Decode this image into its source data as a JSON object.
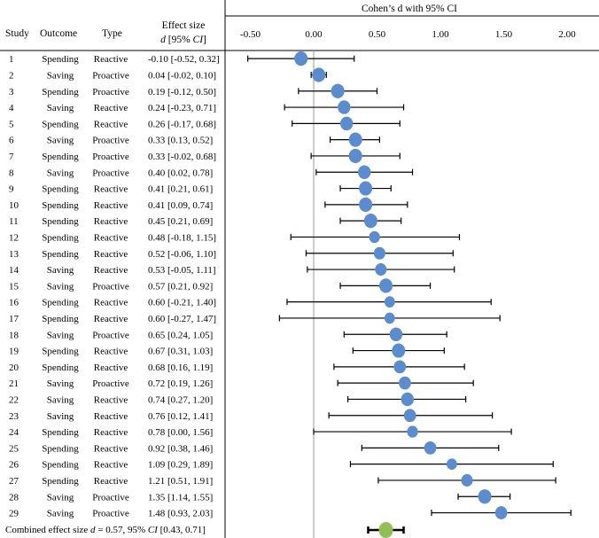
{
  "chart_data": {
    "type": "forest",
    "title": "Cohen’s d with 95% CI",
    "columns": {
      "study": "Study",
      "outcome": "Outcome",
      "type": "Type",
      "effect_line1": "Effect size",
      "effect_line2_d": "d",
      "effect_line2_ci_open": " [95% ",
      "effect_line2_ci": "CI",
      "effect_line2_ci_close": "]"
    },
    "x_ticks": [
      "-0.50",
      "0.00",
      "0.50",
      "1.00",
      "1.50",
      "2.00"
    ],
    "x_tick_values": [
      -0.5,
      0.0,
      0.5,
      1.0,
      1.5,
      2.0
    ],
    "xlim": [
      -0.7,
      2.15
    ],
    "studies": [
      {
        "study": "1",
        "outcome": "Spending",
        "type": "Reactive",
        "d": -0.1,
        "lo": -0.52,
        "hi": 0.32,
        "label": "-0.10 [-0.52, 0.32]",
        "weight": 1.0
      },
      {
        "study": "2",
        "outcome": "Saving",
        "type": "Proactive",
        "d": 0.04,
        "lo": -0.02,
        "hi": 0.1,
        "label": "0.04 [-0.02, 0.10]",
        "weight": 1.0
      },
      {
        "study": "3",
        "outcome": "Spending",
        "type": "Proactive",
        "d": 0.19,
        "lo": -0.12,
        "hi": 0.5,
        "label": "0.19 [-0.12, 0.50]",
        "weight": 1.0
      },
      {
        "study": "4",
        "outcome": "Saving",
        "type": "Reactive",
        "d": 0.24,
        "lo": -0.23,
        "hi": 0.71,
        "label": "0.24 [-0.23, 0.71]",
        "weight": 0.95
      },
      {
        "study": "5",
        "outcome": "Spending",
        "type": "Reactive",
        "d": 0.26,
        "lo": -0.17,
        "hi": 0.68,
        "label": "0.26 [-0.17, 0.68]",
        "weight": 0.95
      },
      {
        "study": "6",
        "outcome": "Saving",
        "type": "Proactive",
        "d": 0.33,
        "lo": 0.13,
        "hi": 0.52,
        "label": "0.33 [0.13, 0.52]",
        "weight": 1.0
      },
      {
        "study": "7",
        "outcome": "Spending",
        "type": "Proactive",
        "d": 0.33,
        "lo": -0.02,
        "hi": 0.68,
        "label": "0.33 [-0.02, 0.68]",
        "weight": 1.0
      },
      {
        "study": "8",
        "outcome": "Saving",
        "type": "Proactive",
        "d": 0.4,
        "lo": 0.02,
        "hi": 0.78,
        "label": "0.40 [0.02, 0.78]",
        "weight": 0.95
      },
      {
        "study": "9",
        "outcome": "Spending",
        "type": "Reactive",
        "d": 0.41,
        "lo": 0.21,
        "hi": 0.61,
        "label": "0.41 [0.21, 0.61]",
        "weight": 1.0
      },
      {
        "study": "10",
        "outcome": "Spending",
        "type": "Reactive",
        "d": 0.41,
        "lo": 0.09,
        "hi": 0.74,
        "label": "0.41 [0.09, 0.74]",
        "weight": 1.0
      },
      {
        "study": "11",
        "outcome": "Spending",
        "type": "Reactive",
        "d": 0.45,
        "lo": 0.21,
        "hi": 0.69,
        "label": "0.45 [0.21, 0.69]",
        "weight": 1.0
      },
      {
        "study": "12",
        "outcome": "Spending",
        "type": "Reactive",
        "d": 0.48,
        "lo": -0.18,
        "hi": 1.15,
        "label": "0.48 [-0.18, 1.15]",
        "weight": 0.8
      },
      {
        "study": "13",
        "outcome": "Spending",
        "type": "Reactive",
        "d": 0.52,
        "lo": -0.06,
        "hi": 1.1,
        "label": "0.52 [-0.06, 1.10]",
        "weight": 0.85
      },
      {
        "study": "14",
        "outcome": "Saving",
        "type": "Reactive",
        "d": 0.53,
        "lo": -0.05,
        "hi": 1.11,
        "label": "0.53 [-0.05, 1.11]",
        "weight": 0.85
      },
      {
        "study": "15",
        "outcome": "Saving",
        "type": "Proactive",
        "d": 0.57,
        "lo": 0.21,
        "hi": 0.92,
        "label": "0.57 [0.21, 0.92]",
        "weight": 1.0
      },
      {
        "study": "16",
        "outcome": "Spending",
        "type": "Reactive",
        "d": 0.6,
        "lo": -0.21,
        "hi": 1.4,
        "label": "0.60 [-0.21, 1.40]",
        "weight": 0.75
      },
      {
        "study": "17",
        "outcome": "Spending",
        "type": "Reactive",
        "d": 0.6,
        "lo": -0.27,
        "hi": 1.47,
        "label": "0.60 [-0.27, 1.47]",
        "weight": 0.75
      },
      {
        "study": "18",
        "outcome": "Saving",
        "type": "Proactive",
        "d": 0.65,
        "lo": 0.24,
        "hi": 1.05,
        "label": "0.65 [0.24, 1.05]",
        "weight": 0.95
      },
      {
        "study": "19",
        "outcome": "Spending",
        "type": "Reactive",
        "d": 0.67,
        "lo": 0.31,
        "hi": 1.03,
        "label": "0.67 [0.31, 1.03]",
        "weight": 1.0
      },
      {
        "study": "20",
        "outcome": "Spending",
        "type": "Reactive",
        "d": 0.68,
        "lo": 0.16,
        "hi": 1.19,
        "label": "0.68 [0.16, 1.19]",
        "weight": 0.9
      },
      {
        "study": "21",
        "outcome": "Saving",
        "type": "Proactive",
        "d": 0.72,
        "lo": 0.19,
        "hi": 1.26,
        "label": "0.72 [0.19, 1.26]",
        "weight": 0.9
      },
      {
        "study": "22",
        "outcome": "Saving",
        "type": "Reactive",
        "d": 0.74,
        "lo": 0.27,
        "hi": 1.2,
        "label": "0.74 [0.27, 1.20]",
        "weight": 0.95
      },
      {
        "study": "23",
        "outcome": "Saving",
        "type": "Reactive",
        "d": 0.76,
        "lo": 0.12,
        "hi": 1.41,
        "label": "0.76 [0.12, 1.41]",
        "weight": 0.9
      },
      {
        "study": "24",
        "outcome": "Spending",
        "type": "Reactive",
        "d": 0.78,
        "lo": 0.0,
        "hi": 1.56,
        "label": "0.78 [0.00, 1.56]",
        "weight": 0.8
      },
      {
        "study": "25",
        "outcome": "Spending",
        "type": "Reactive",
        "d": 0.92,
        "lo": 0.38,
        "hi": 1.46,
        "label": "0.92 [0.38, 1.46]",
        "weight": 0.9
      },
      {
        "study": "26",
        "outcome": "Spending",
        "type": "Reactive",
        "d": 1.09,
        "lo": 0.29,
        "hi": 1.89,
        "label": "1.09 [0.29, 1.89]",
        "weight": 0.75
      },
      {
        "study": "27",
        "outcome": "Spending",
        "type": "Reactive",
        "d": 1.21,
        "lo": 0.51,
        "hi": 1.91,
        "label": "1.21 [0.51, 1.91]",
        "weight": 0.85
      },
      {
        "study": "28",
        "outcome": "Saving",
        "type": "Proactive",
        "d": 1.35,
        "lo": 1.14,
        "hi": 1.55,
        "label": "1.35 [1.14, 1.55]",
        "weight": 1.0
      },
      {
        "study": "29",
        "outcome": "Saving",
        "type": "Proactive",
        "d": 1.48,
        "lo": 0.93,
        "hi": 2.03,
        "label": "1.48 [0.93, 2.03]",
        "weight": 0.9
      }
    ],
    "combined": {
      "label_prefix": "Combined effect size ",
      "label_d": "d",
      "label_mid": " = 0.57, 95% ",
      "label_ci": "CI",
      "label_suffix": " [0.43, 0.71]",
      "d": 0.57,
      "lo": 0.43,
      "hi": 0.71
    },
    "colors": {
      "study_marker": "#5b8ccf",
      "combined_marker": "#93be52",
      "whisker": "#000000",
      "zero_line": "#9a9a9a",
      "frame": "#000000"
    }
  }
}
